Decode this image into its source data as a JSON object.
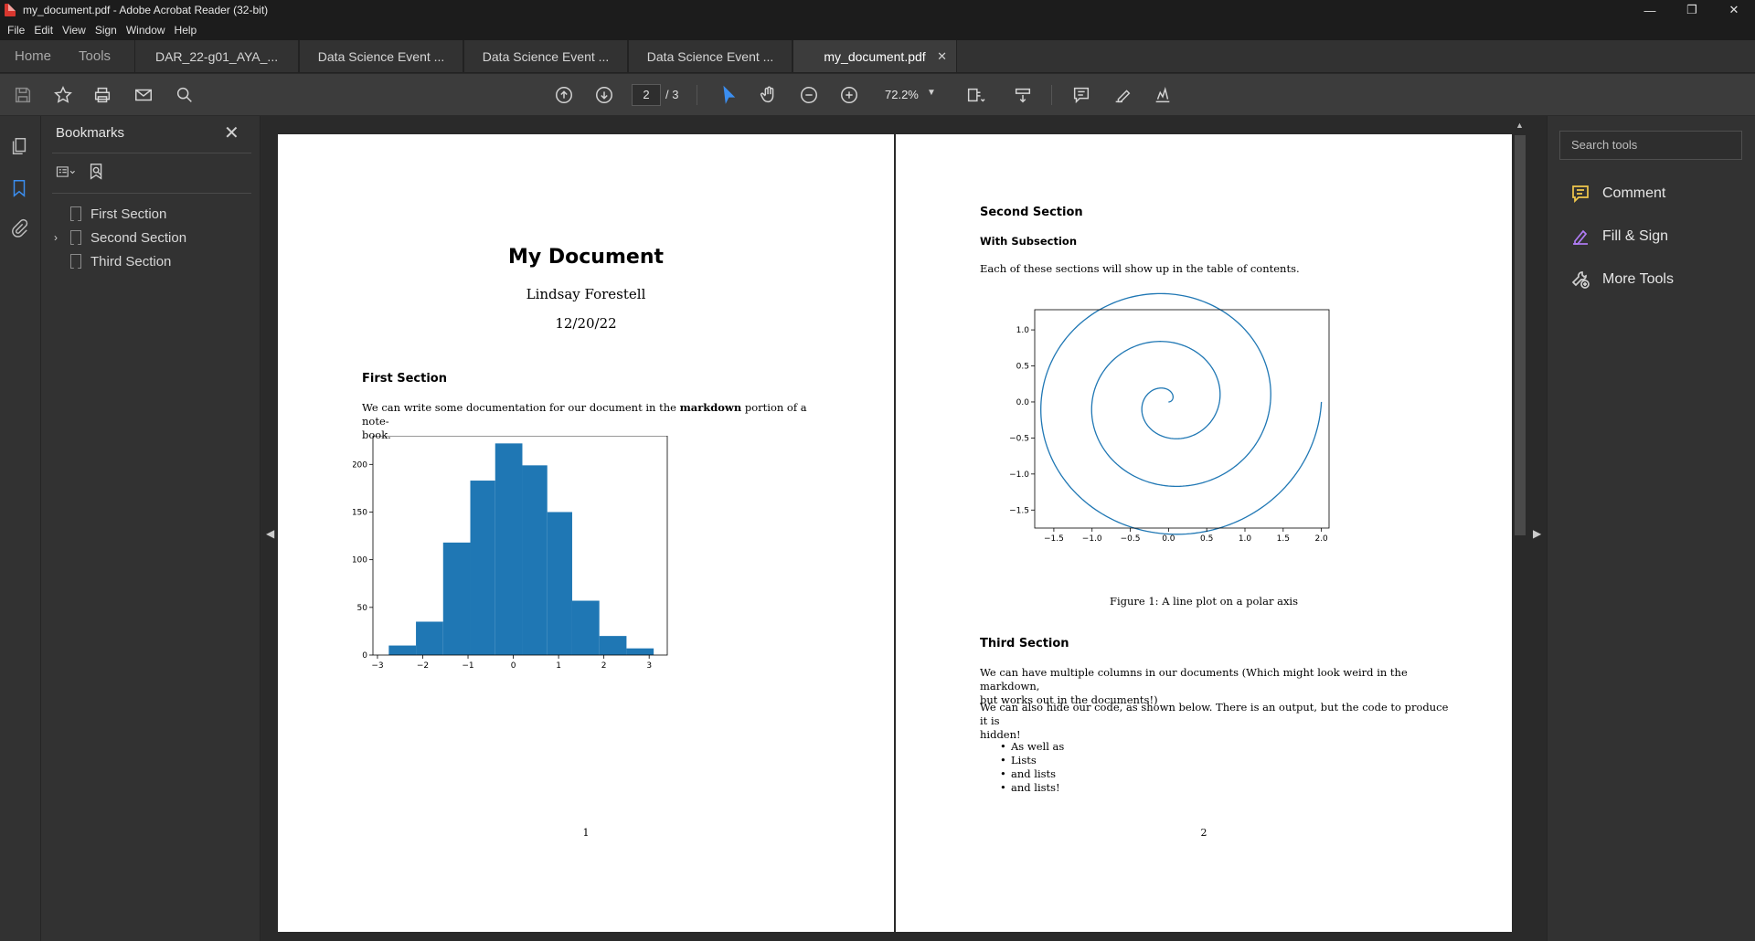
{
  "window": {
    "title": "my_document.pdf - Adobe Acrobat Reader (32-bit)",
    "controls": [
      "—",
      "❐",
      "✕"
    ]
  },
  "menu": [
    "File",
    "Edit",
    "View",
    "Sign",
    "Window",
    "Help"
  ],
  "nav_tabs": [
    "Home",
    "Tools"
  ],
  "doc_tabs": [
    {
      "label": "DAR_22-g01_AYA_..."
    },
    {
      "label": "Data Science Event ..."
    },
    {
      "label": "Data Science Event ..."
    },
    {
      "label": "Data Science Event ..."
    },
    {
      "label": "my_document.pdf",
      "close": "✕"
    }
  ],
  "toolbar": {
    "page_current": "2",
    "page_total": "/ 3",
    "zoom": "72.2%"
  },
  "bookmarks": {
    "title": "Bookmarks",
    "close": "✕",
    "items": [
      {
        "label": "First Section"
      },
      {
        "label": "Second Section",
        "expander": "›"
      },
      {
        "label": "Third Section"
      }
    ]
  },
  "right_pane": {
    "search_placeholder": "Search tools",
    "tools": [
      {
        "label": "Comment",
        "color": "#f2c94c"
      },
      {
        "label": "Fill & Sign",
        "color": "#b07cf5"
      },
      {
        "label": "More Tools",
        "color": "#cfcfcf"
      }
    ]
  },
  "page1": {
    "title": "My Document",
    "author": "Lindsay Forestell",
    "date": "12/20/22",
    "section_heading": "First Section",
    "paragraph_before": "We can write some documentation for our document in the",
    "paragraph_bold": "markdown",
    "paragraph_after": "portion of a note-",
    "paragraph_line2": "book.",
    "page_number": "1"
  },
  "page2": {
    "section_heading": "Second Section",
    "subsection_heading": "With Subsection",
    "subsection_text": "Each of these sections will show up in the table of contents.",
    "figure_caption": "Figure 1: A line plot on a polar axis",
    "third_heading": "Third Section",
    "para1_line1": "We can have multiple columns in our documents (Which might look weird in the markdown,",
    "para1_line2": "but works out in the documents!)",
    "para2_line1": "We can also hide our code, as shown below. There is an output, but the code to produce it is",
    "para2_line2": "hidden!",
    "list": [
      "As well as",
      "Lists",
      "and lists",
      "and lists!"
    ],
    "page_number": "2"
  },
  "chart_data": [
    {
      "type": "bar",
      "title": "",
      "xlabel": "",
      "ylabel": "",
      "bin_edges": [
        -2.75,
        -2.15,
        -1.55,
        -0.95,
        -0.4,
        0.2,
        0.75,
        1.3,
        1.9,
        2.5,
        3.1
      ],
      "values": [
        10,
        35,
        118,
        183,
        222,
        199,
        150,
        57,
        20,
        7
      ],
      "xlim": [
        -3.1,
        3.4
      ],
      "ylim": [
        0,
        230
      ],
      "xticks": [
        "−3",
        "−2",
        "−1",
        "0",
        "1",
        "2",
        "3"
      ],
      "xtick_values": [
        -3,
        -2,
        -1,
        0,
        1,
        2,
        3
      ],
      "yticks": [
        "0",
        "50",
        "100",
        "150",
        "200"
      ],
      "ytick_values": [
        0,
        50,
        100,
        150,
        200
      ],
      "color": "#1f77b4"
    },
    {
      "type": "line",
      "title": "",
      "xlabel": "",
      "ylabel": "",
      "description_of_series": "Archimedean spiral from origin outward, r from 0 to 2, three turns",
      "r_max": 2.0,
      "turns": 3,
      "xlim": [
        -1.75,
        2.1
      ],
      "ylim": [
        -1.75,
        1.28
      ],
      "xticks": [
        "−1.5",
        "−1.0",
        "−0.5",
        "0.0",
        "0.5",
        "1.0",
        "1.5",
        "2.0"
      ],
      "xtick_values": [
        -1.5,
        -1.0,
        -0.5,
        0.0,
        0.5,
        1.0,
        1.5,
        2.0
      ],
      "yticks": [
        "1.0",
        "0.5",
        "0.0",
        "−0.5",
        "−1.0",
        "−1.5"
      ],
      "ytick_values": [
        1.0,
        0.5,
        0.0,
        -0.5,
        -1.0,
        -1.5
      ],
      "color": "#1f77b4"
    }
  ]
}
